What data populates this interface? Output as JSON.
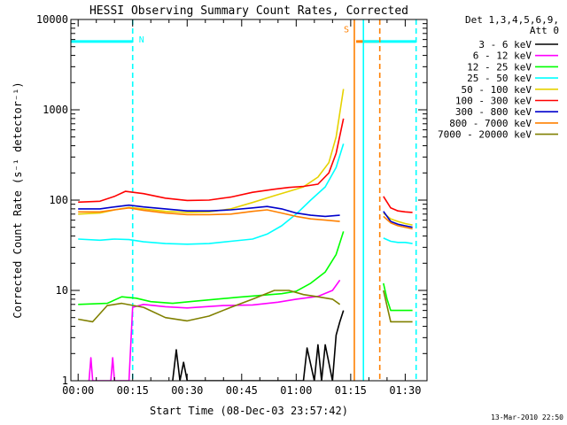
{
  "chart_data": {
    "type": "line",
    "title": "HESSI Observing Summary Count Rates, Corrected",
    "xlabel": "Start Time (08-Dec-03 23:57:42)",
    "ylabel": "Corrected Count Rate (s⁻¹ detector⁻¹)",
    "yscale": "log",
    "ylim": [
      1,
      10000
    ],
    "xlim_minutes": [
      -2,
      96
    ],
    "x_ticks": [
      {
        "m": 0,
        "label": "00:00"
      },
      {
        "m": 15,
        "label": "00:15"
      },
      {
        "m": 30,
        "label": "00:30"
      },
      {
        "m": 45,
        "label": "00:45"
      },
      {
        "m": 60,
        "label": "01:00"
      },
      {
        "m": 75,
        "label": "01:15"
      },
      {
        "m": 90,
        "label": "01:30"
      }
    ],
    "y_ticks": [
      {
        "v": 1,
        "label": "1"
      },
      {
        "v": 10,
        "label": "10"
      },
      {
        "v": 100,
        "label": "100"
      },
      {
        "v": 1000,
        "label": "1000"
      },
      {
        "v": 10000,
        "label": "10000"
      }
    ],
    "legend_header": [
      "Det 1,3,4,5,6,9,",
      "Att 0"
    ],
    "legend_position": "right",
    "series": [
      {
        "name": "3 - 6 keV",
        "color": "#000000",
        "segments": [
          [
            [
              26,
              1
            ],
            [
              27,
              2.2
            ],
            [
              28,
              1
            ],
            [
              29,
              1.6
            ],
            [
              30,
              1
            ],
            [
              62,
              1
            ],
            [
              63,
              2.3
            ],
            [
              65,
              1
            ],
            [
              66,
              2.5
            ],
            [
              67,
              1
            ],
            [
              68,
              2.5
            ],
            [
              70,
              1
            ],
            [
              71,
              3.2
            ],
            [
              72,
              4.5
            ],
            [
              73,
              6
            ]
          ]
        ]
      },
      {
        "name": "6 - 12 keV",
        "color": "#ff00ff",
        "segments": [
          [
            [
              3,
              1
            ],
            [
              3.5,
              1.8
            ],
            [
              4,
              1
            ],
            [
              9,
              1
            ],
            [
              9.5,
              1.8
            ],
            [
              10,
              1
            ],
            [
              14,
              1
            ],
            [
              15,
              6.5
            ],
            [
              18,
              7
            ],
            [
              24,
              6.6
            ],
            [
              30,
              6.4
            ],
            [
              40,
              6.8
            ],
            [
              48,
              6.9
            ],
            [
              55,
              7.4
            ],
            [
              60,
              8
            ],
            [
              66,
              8.6
            ],
            [
              70,
              10
            ],
            [
              72,
              13
            ]
          ]
        ]
      },
      {
        "name": "12 - 25 keV",
        "color": "#00ff00",
        "segments": [
          [
            [
              0,
              7
            ],
            [
              8,
              7.2
            ],
            [
              12,
              8.5
            ],
            [
              16,
              8.2
            ],
            [
              20,
              7.5
            ],
            [
              26,
              7.2
            ],
            [
              32,
              7.6
            ],
            [
              38,
              8
            ],
            [
              44,
              8.4
            ],
            [
              50,
              8.8
            ],
            [
              56,
              9.2
            ],
            [
              60,
              9.8
            ],
            [
              64,
              12
            ],
            [
              68,
              16
            ],
            [
              71,
              25
            ],
            [
              73,
              45
            ]
          ],
          [
            [
              84,
              12
            ],
            [
              85,
              8
            ],
            [
              86,
              6
            ],
            [
              88,
              6
            ],
            [
              90,
              6
            ],
            [
              92,
              6
            ]
          ]
        ]
      },
      {
        "name": "25 - 50 keV",
        "color": "#00ffff",
        "segments": [
          [
            [
              0,
              37
            ],
            [
              6,
              36
            ],
            [
              10,
              37
            ],
            [
              14,
              36.5
            ],
            [
              18,
              34.5
            ],
            [
              24,
              33
            ],
            [
              30,
              32.5
            ],
            [
              36,
              33
            ],
            [
              42,
              35
            ],
            [
              48,
              37
            ],
            [
              52,
              42
            ],
            [
              56,
              52
            ],
            [
              60,
              70
            ],
            [
              64,
              100
            ],
            [
              68,
              140
            ],
            [
              71,
              230
            ],
            [
              73,
              420
            ]
          ],
          [
            [
              84,
              38
            ],
            [
              86,
              35
            ],
            [
              88,
              34
            ],
            [
              90,
              34
            ],
            [
              92,
              33
            ]
          ]
        ]
      },
      {
        "name": "50 - 100 keV",
        "color": "#e6d200",
        "segments": [
          [
            [
              0,
              70
            ],
            [
              6,
              72
            ],
            [
              10,
              78
            ],
            [
              14,
              83
            ],
            [
              18,
              80
            ],
            [
              24,
              75
            ],
            [
              30,
              73
            ],
            [
              36,
              74
            ],
            [
              42,
              80
            ],
            [
              48,
              94
            ],
            [
              54,
              112
            ],
            [
              58,
              125
            ],
            [
              62,
              140
            ],
            [
              66,
              180
            ],
            [
              69,
              260
            ],
            [
              71,
              500
            ],
            [
              73,
              1700
            ]
          ],
          [
            [
              84,
              72
            ],
            [
              86,
              62
            ],
            [
              88,
              58
            ],
            [
              90,
              55
            ],
            [
              92,
              53
            ]
          ]
        ]
      },
      {
        "name": "100 - 300 keV",
        "color": "#ff0000",
        "segments": [
          [
            [
              0,
              95
            ],
            [
              6,
              97
            ],
            [
              10,
              110
            ],
            [
              13,
              125
            ],
            [
              18,
              118
            ],
            [
              24,
              105
            ],
            [
              30,
              99
            ],
            [
              36,
              100
            ],
            [
              42,
              108
            ],
            [
              48,
              122
            ],
            [
              54,
              132
            ],
            [
              58,
              138
            ],
            [
              62,
              142
            ],
            [
              66,
              150
            ],
            [
              69,
              200
            ],
            [
              71,
              330
            ],
            [
              73,
              800
            ]
          ],
          [
            [
              84,
              110
            ],
            [
              86,
              82
            ],
            [
              88,
              76
            ],
            [
              90,
              74
            ],
            [
              92,
              73
            ]
          ]
        ]
      },
      {
        "name": "300 - 800 keV",
        "color": "#0000cc",
        "segments": [
          [
            [
              0,
              80
            ],
            [
              6,
              80
            ],
            [
              10,
              84
            ],
            [
              14,
              88
            ],
            [
              18,
              84
            ],
            [
              24,
              80
            ],
            [
              30,
              76
            ],
            [
              36,
              76
            ],
            [
              42,
              78
            ],
            [
              48,
              82
            ],
            [
              52,
              85
            ],
            [
              56,
              80
            ],
            [
              60,
              72
            ],
            [
              64,
              68
            ],
            [
              68,
              66
            ],
            [
              72,
              68
            ]
          ],
          [
            [
              84,
              75
            ],
            [
              86,
              58
            ],
            [
              88,
              54
            ],
            [
              90,
              52
            ],
            [
              92,
              50
            ]
          ]
        ]
      },
      {
        "name": "800 - 7000 keV",
        "color": "#ff8000",
        "segments": [
          [
            [
              0,
              74
            ],
            [
              6,
              74
            ],
            [
              10,
              78
            ],
            [
              14,
              82
            ],
            [
              18,
              77
            ],
            [
              24,
              72
            ],
            [
              30,
              69
            ],
            [
              36,
              69
            ],
            [
              42,
              70
            ],
            [
              48,
              75
            ],
            [
              52,
              78
            ],
            [
              56,
              72
            ],
            [
              60,
              66
            ],
            [
              64,
              62
            ],
            [
              68,
              60
            ],
            [
              72,
              58
            ]
          ],
          [
            [
              84,
              66
            ],
            [
              86,
              56
            ],
            [
              88,
              52
            ],
            [
              90,
              50
            ],
            [
              92,
              48
            ]
          ]
        ]
      },
      {
        "name": "7000 - 20000 keV",
        "color": "#808000",
        "segments": [
          [
            [
              0,
              4.8
            ],
            [
              4,
              4.5
            ],
            [
              8,
              6.8
            ],
            [
              12,
              7.2
            ],
            [
              18,
              6.5
            ],
            [
              24,
              5
            ],
            [
              30,
              4.6
            ],
            [
              36,
              5.2
            ],
            [
              42,
              6.5
            ],
            [
              48,
              8
            ],
            [
              54,
              10
            ],
            [
              58,
              10
            ],
            [
              62,
              9
            ],
            [
              66,
              8.5
            ],
            [
              70,
              8
            ],
            [
              72,
              7
            ]
          ],
          [
            [
              84,
              10
            ],
            [
              86,
              4.5
            ],
            [
              88,
              4.5
            ],
            [
              90,
              4.5
            ],
            [
              92,
              4.5
            ]
          ]
        ]
      }
    ],
    "annotations": {
      "flags": [
        {
          "label": "N",
          "color": "#00ffff",
          "start": -2,
          "end": 15
        },
        {
          "label": "S",
          "color": "#ff8000",
          "start": 76.5,
          "end": 82.5
        },
        {
          "label": "",
          "color": "#00ffff",
          "start": 78.5,
          "end": 93
        }
      ],
      "vlines": [
        {
          "x": 15,
          "color": "#00ffff",
          "style": "dashed"
        },
        {
          "x": 76,
          "color": "#ff8000",
          "style": "solid"
        },
        {
          "x": 78.5,
          "color": "#00ffff",
          "style": "solid"
        },
        {
          "x": 83,
          "color": "#ff8000",
          "style": "dashed"
        },
        {
          "x": 93,
          "color": "#00ffff",
          "style": "dashed"
        }
      ]
    }
  },
  "footer": {
    "timestamp": "13-Mar-2010 22:50"
  }
}
